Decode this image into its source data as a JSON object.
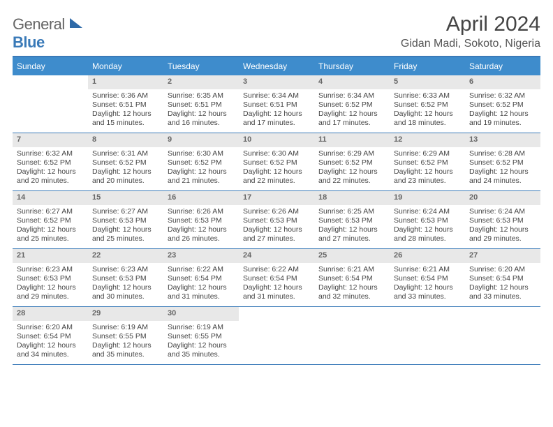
{
  "brand": {
    "part1": "General",
    "part2": "Blue"
  },
  "title": "April 2024",
  "location": "Gidan Madi, Sokoto, Nigeria",
  "colors": {
    "header_bg": "#3e8ccc",
    "header_text": "#ffffff",
    "rule": "#3a7ab8",
    "daynum_bg": "#e8e8e8",
    "daynum_text": "#666666",
    "body_text": "#444444",
    "month_title": "#444444",
    "location_text": "#555555",
    "page_bg": "#ffffff"
  },
  "typography": {
    "month_title_pt": 30,
    "location_pt": 16,
    "dow_pt": 12,
    "cell_pt": 10.5,
    "font_family": "Arial"
  },
  "dow": [
    "Sunday",
    "Monday",
    "Tuesday",
    "Wednesday",
    "Thursday",
    "Friday",
    "Saturday"
  ],
  "weeks": [
    [
      null,
      {
        "n": "1",
        "sr": "6:36 AM",
        "ss": "6:51 PM",
        "dl": "12 hours and 15 minutes."
      },
      {
        "n": "2",
        "sr": "6:35 AM",
        "ss": "6:51 PM",
        "dl": "12 hours and 16 minutes."
      },
      {
        "n": "3",
        "sr": "6:34 AM",
        "ss": "6:51 PM",
        "dl": "12 hours and 17 minutes."
      },
      {
        "n": "4",
        "sr": "6:34 AM",
        "ss": "6:52 PM",
        "dl": "12 hours and 17 minutes."
      },
      {
        "n": "5",
        "sr": "6:33 AM",
        "ss": "6:52 PM",
        "dl": "12 hours and 18 minutes."
      },
      {
        "n": "6",
        "sr": "6:32 AM",
        "ss": "6:52 PM",
        "dl": "12 hours and 19 minutes."
      }
    ],
    [
      {
        "n": "7",
        "sr": "6:32 AM",
        "ss": "6:52 PM",
        "dl": "12 hours and 20 minutes."
      },
      {
        "n": "8",
        "sr": "6:31 AM",
        "ss": "6:52 PM",
        "dl": "12 hours and 20 minutes."
      },
      {
        "n": "9",
        "sr": "6:30 AM",
        "ss": "6:52 PM",
        "dl": "12 hours and 21 minutes."
      },
      {
        "n": "10",
        "sr": "6:30 AM",
        "ss": "6:52 PM",
        "dl": "12 hours and 22 minutes."
      },
      {
        "n": "11",
        "sr": "6:29 AM",
        "ss": "6:52 PM",
        "dl": "12 hours and 22 minutes."
      },
      {
        "n": "12",
        "sr": "6:29 AM",
        "ss": "6:52 PM",
        "dl": "12 hours and 23 minutes."
      },
      {
        "n": "13",
        "sr": "6:28 AM",
        "ss": "6:52 PM",
        "dl": "12 hours and 24 minutes."
      }
    ],
    [
      {
        "n": "14",
        "sr": "6:27 AM",
        "ss": "6:52 PM",
        "dl": "12 hours and 25 minutes."
      },
      {
        "n": "15",
        "sr": "6:27 AM",
        "ss": "6:53 PM",
        "dl": "12 hours and 25 minutes."
      },
      {
        "n": "16",
        "sr": "6:26 AM",
        "ss": "6:53 PM",
        "dl": "12 hours and 26 minutes."
      },
      {
        "n": "17",
        "sr": "6:26 AM",
        "ss": "6:53 PM",
        "dl": "12 hours and 27 minutes."
      },
      {
        "n": "18",
        "sr": "6:25 AM",
        "ss": "6:53 PM",
        "dl": "12 hours and 27 minutes."
      },
      {
        "n": "19",
        "sr": "6:24 AM",
        "ss": "6:53 PM",
        "dl": "12 hours and 28 minutes."
      },
      {
        "n": "20",
        "sr": "6:24 AM",
        "ss": "6:53 PM",
        "dl": "12 hours and 29 minutes."
      }
    ],
    [
      {
        "n": "21",
        "sr": "6:23 AM",
        "ss": "6:53 PM",
        "dl": "12 hours and 29 minutes."
      },
      {
        "n": "22",
        "sr": "6:23 AM",
        "ss": "6:53 PM",
        "dl": "12 hours and 30 minutes."
      },
      {
        "n": "23",
        "sr": "6:22 AM",
        "ss": "6:54 PM",
        "dl": "12 hours and 31 minutes."
      },
      {
        "n": "24",
        "sr": "6:22 AM",
        "ss": "6:54 PM",
        "dl": "12 hours and 31 minutes."
      },
      {
        "n": "25",
        "sr": "6:21 AM",
        "ss": "6:54 PM",
        "dl": "12 hours and 32 minutes."
      },
      {
        "n": "26",
        "sr": "6:21 AM",
        "ss": "6:54 PM",
        "dl": "12 hours and 33 minutes."
      },
      {
        "n": "27",
        "sr": "6:20 AM",
        "ss": "6:54 PM",
        "dl": "12 hours and 33 minutes."
      }
    ],
    [
      {
        "n": "28",
        "sr": "6:20 AM",
        "ss": "6:54 PM",
        "dl": "12 hours and 34 minutes."
      },
      {
        "n": "29",
        "sr": "6:19 AM",
        "ss": "6:55 PM",
        "dl": "12 hours and 35 minutes."
      },
      {
        "n": "30",
        "sr": "6:19 AM",
        "ss": "6:55 PM",
        "dl": "12 hours and 35 minutes."
      },
      null,
      null,
      null,
      null
    ]
  ],
  "labels": {
    "sunrise": "Sunrise:",
    "sunset": "Sunset:",
    "daylight": "Daylight:"
  }
}
